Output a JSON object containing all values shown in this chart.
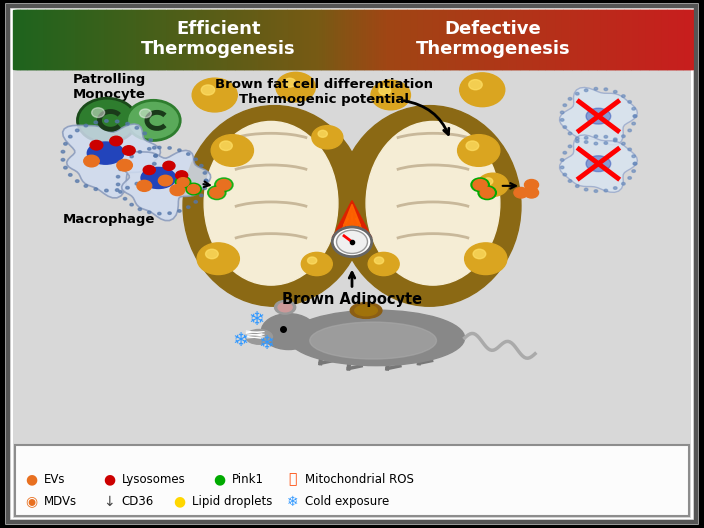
{
  "title_left": "Efficient\nThermogenesis",
  "title_right": "Defective\nThermogenesis",
  "bg_color": "#d8d8d8",
  "label_patrolling": "Patrolling\nMonocyte",
  "label_macrophage": "Macrophage",
  "label_brown_fat": "Brown fat cell differentiation\nThermogenic potential",
  "label_brown_adipo": "Brown Adipocyte",
  "fig_width": 7.04,
  "fig_height": 5.28,
  "dpi": 100
}
